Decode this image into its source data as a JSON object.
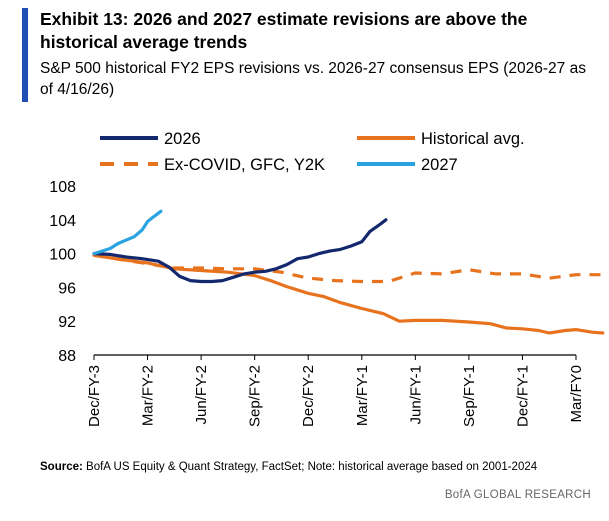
{
  "header": {
    "title": "Exhibit 13: 2026 and 2027 estimate revisions are above the historical average trends",
    "subtitle": "S&P 500 historical FY2 EPS revisions vs. 2026-27 consensus EPS (2026-27 as of 4/16/26)"
  },
  "footer": {
    "source_label": "Source:",
    "source_text": " BofA US Equity & Quant Strategy, FactSet; Note: historical average based on 2001-2024",
    "brand": "BofA GLOBAL RESEARCH"
  },
  "colors": {
    "accent": "#1f4fb5",
    "series_2026": "#14286e",
    "series_hist": "#e8731e",
    "series_excovid": "#e8731e",
    "series_2027": "#2aa3e0"
  },
  "chart_data": {
    "type": "line",
    "categories": [
      "Dec/FY-3",
      "Mar/FY-2",
      "Jun/FY-2",
      "Sep/FY-2",
      "Dec/FY-2",
      "Mar/FY-1",
      "Jun/FY-1",
      "Sep/FY-1",
      "Dec/FY-1",
      "Mar/FY0"
    ],
    "ylim": [
      88,
      108
    ],
    "yticks": [
      88,
      92,
      96,
      100,
      104,
      108
    ],
    "xlabel": "",
    "ylabel": "",
    "grid": false,
    "legend_position": "top",
    "series": [
      {
        "name": "2026",
        "style": "solid",
        "points": [
          [
            0,
            100
          ],
          [
            0.3,
            99.9
          ],
          [
            0.6,
            99.6
          ],
          [
            0.9,
            99.4
          ],
          [
            1.2,
            99.1
          ],
          [
            1.4,
            98.4
          ],
          [
            1.6,
            97.3
          ],
          [
            1.8,
            96.8
          ],
          [
            2.0,
            96.7
          ],
          [
            2.2,
            96.7
          ],
          [
            2.4,
            96.8
          ],
          [
            2.6,
            97.2
          ],
          [
            2.8,
            97.6
          ],
          [
            3.0,
            97.8
          ],
          [
            3.2,
            97.9
          ],
          [
            3.4,
            98.2
          ],
          [
            3.6,
            98.7
          ],
          [
            3.8,
            99.4
          ],
          [
            4.0,
            99.6
          ],
          [
            4.2,
            100.0
          ],
          [
            4.4,
            100.3
          ],
          [
            4.6,
            100.5
          ],
          [
            4.8,
            100.9
          ],
          [
            5.0,
            101.4
          ],
          [
            5.15,
            102.6
          ],
          [
            5.35,
            103.5
          ],
          [
            5.45,
            104.0
          ]
        ]
      },
      {
        "name": "2027",
        "style": "solid",
        "points": [
          [
            0,
            100
          ],
          [
            0.15,
            100.3
          ],
          [
            0.3,
            100.6
          ],
          [
            0.45,
            101.2
          ],
          [
            0.6,
            101.6
          ],
          [
            0.75,
            102.0
          ],
          [
            0.9,
            102.8
          ],
          [
            1.0,
            103.8
          ],
          [
            1.1,
            104.3
          ],
          [
            1.25,
            105.0
          ]
        ]
      },
      {
        "name": "Historical avg.",
        "style": "solid",
        "points": [
          [
            0,
            99.8
          ],
          [
            0.5,
            99.3
          ],
          [
            1.0,
            98.9
          ],
          [
            1.5,
            98.2
          ],
          [
            2.0,
            98.0
          ],
          [
            2.5,
            97.8
          ],
          [
            3.0,
            97.4
          ],
          [
            3.3,
            96.8
          ],
          [
            3.6,
            96.1
          ],
          [
            4.0,
            95.3
          ],
          [
            4.3,
            94.9
          ],
          [
            4.6,
            94.2
          ],
          [
            5.0,
            93.5
          ],
          [
            5.4,
            92.9
          ],
          [
            5.7,
            92.0
          ],
          [
            6.0,
            92.1
          ],
          [
            6.5,
            92.1
          ],
          [
            7.0,
            91.9
          ],
          [
            7.4,
            91.7
          ],
          [
            7.7,
            91.2
          ],
          [
            8.0,
            91.1
          ],
          [
            8.3,
            90.9
          ],
          [
            8.5,
            90.6
          ],
          [
            8.8,
            90.9
          ],
          [
            9.0,
            91.0
          ],
          [
            9.3,
            90.7
          ],
          [
            9.5,
            90.6
          ]
        ]
      },
      {
        "name": "Ex-COVID, GFC, Y2K",
        "style": "dashed",
        "points": [
          [
            0,
            99.8
          ],
          [
            0.5,
            99.3
          ],
          [
            1.0,
            98.8
          ],
          [
            1.5,
            98.3
          ],
          [
            2.0,
            98.3
          ],
          [
            2.5,
            98.2
          ],
          [
            3.0,
            98.2
          ],
          [
            3.5,
            97.8
          ],
          [
            4.0,
            97.1
          ],
          [
            4.5,
            96.8
          ],
          [
            5.0,
            96.7
          ],
          [
            5.5,
            96.7
          ],
          [
            6.0,
            97.7
          ],
          [
            6.5,
            97.6
          ],
          [
            7.0,
            98.1
          ],
          [
            7.5,
            97.6
          ],
          [
            8.0,
            97.6
          ],
          [
            8.5,
            97.1
          ],
          [
            9.0,
            97.5
          ],
          [
            9.5,
            97.5
          ]
        ]
      }
    ],
    "legend": [
      {
        "name": "2026"
      },
      {
        "name": "Historical avg."
      },
      {
        "name": "Ex-COVID, GFC, Y2K"
      },
      {
        "name": "2027"
      }
    ]
  }
}
